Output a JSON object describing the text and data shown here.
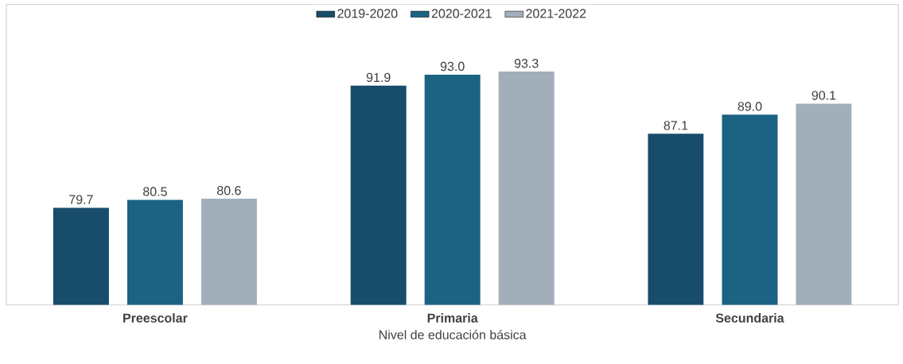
{
  "chart_data": {
    "type": "bar",
    "xlabel": "Nivel de educación básica",
    "categories": [
      "Preescolar",
      "Primaria",
      "Secundaria"
    ],
    "series": [
      {
        "name": "2019-2020",
        "color": "#174c6a",
        "values": [
          79.7,
          91.9,
          87.1
        ],
        "value_labels": [
          "79.7",
          "91.9",
          "87.1"
        ]
      },
      {
        "name": "2020-2021",
        "color": "#1b6283",
        "values": [
          80.5,
          93.0,
          89.0
        ],
        "value_labels": [
          "80.5",
          "93.0",
          "89.0"
        ]
      },
      {
        "name": "2021-2022",
        "color": "#a2afba",
        "values": [
          80.6,
          93.3,
          90.1
        ],
        "value_labels": [
          "80.6",
          "93.3",
          "90.1"
        ]
      }
    ],
    "ylim": [
      70,
      100
    ],
    "tick_labels": "x",
    "legend": "top"
  }
}
